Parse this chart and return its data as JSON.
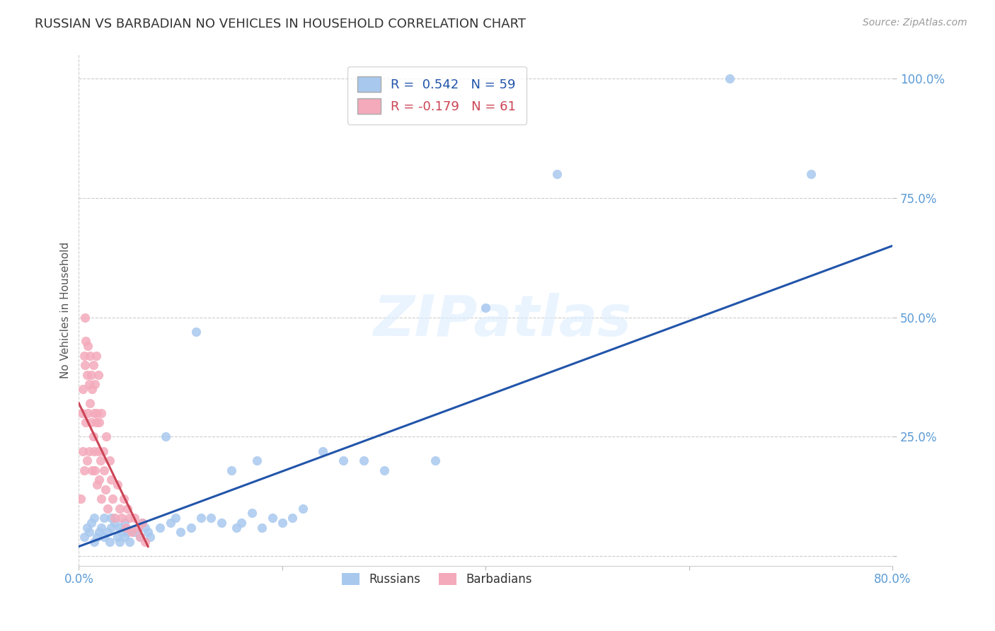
{
  "title": "RUSSIAN VS BARBADIAN NO VEHICLES IN HOUSEHOLD CORRELATION CHART",
  "source": "Source: ZipAtlas.com",
  "ylabel": "No Vehicles in Household",
  "xlim": [
    0.0,
    0.8
  ],
  "ylim": [
    -0.02,
    1.05
  ],
  "xticks": [
    0.0,
    0.2,
    0.4,
    0.6,
    0.8
  ],
  "xtick_labels": [
    "0.0%",
    "",
    "",
    "",
    "80.0%"
  ],
  "yticks": [
    0.0,
    0.25,
    0.5,
    0.75,
    1.0
  ],
  "ytick_labels": [
    "",
    "25.0%",
    "50.0%",
    "75.0%",
    "100.0%"
  ],
  "grid_color": "#cccccc",
  "background_color": "#ffffff",
  "russian_color": "#A8C8EE",
  "barbadian_color": "#F4AABB",
  "russian_line_color": "#2255AA",
  "barbadian_line_color": "#CC4455",
  "R_russian": 0.542,
  "N_russian": 59,
  "R_barbadian": -0.179,
  "N_barbadian": 61,
  "watermark": "ZIPatlas",
  "russian_line_x": [
    0.0,
    0.8
  ],
  "russian_line_y": [
    0.02,
    0.65
  ],
  "barbadian_line_x": [
    0.0,
    0.068
  ],
  "barbadian_line_y": [
    0.32,
    0.02
  ],
  "russians_x": [
    0.005,
    0.008,
    0.01,
    0.012,
    0.015,
    0.015,
    0.018,
    0.02,
    0.022,
    0.025,
    0.025,
    0.028,
    0.03,
    0.032,
    0.032,
    0.035,
    0.038,
    0.04,
    0.04,
    0.042,
    0.045,
    0.045,
    0.048,
    0.05,
    0.055,
    0.06,
    0.062,
    0.065,
    0.068,
    0.07,
    0.08,
    0.085,
    0.09,
    0.095,
    0.1,
    0.11,
    0.115,
    0.12,
    0.13,
    0.14,
    0.15,
    0.155,
    0.16,
    0.17,
    0.175,
    0.18,
    0.19,
    0.2,
    0.21,
    0.22,
    0.24,
    0.26,
    0.28,
    0.3,
    0.35,
    0.4,
    0.47,
    0.64,
    0.72
  ],
  "russians_y": [
    0.04,
    0.06,
    0.05,
    0.07,
    0.03,
    0.08,
    0.04,
    0.05,
    0.06,
    0.04,
    0.08,
    0.05,
    0.03,
    0.06,
    0.08,
    0.07,
    0.04,
    0.03,
    0.06,
    0.05,
    0.04,
    0.07,
    0.05,
    0.03,
    0.05,
    0.04,
    0.07,
    0.06,
    0.05,
    0.04,
    0.06,
    0.25,
    0.07,
    0.08,
    0.05,
    0.06,
    0.47,
    0.08,
    0.08,
    0.07,
    0.18,
    0.06,
    0.07,
    0.09,
    0.2,
    0.06,
    0.08,
    0.07,
    0.08,
    0.1,
    0.22,
    0.2,
    0.2,
    0.18,
    0.2,
    0.52,
    0.8,
    1.0,
    0.8
  ],
  "barbadians_x": [
    0.002,
    0.003,
    0.004,
    0.004,
    0.005,
    0.005,
    0.006,
    0.006,
    0.007,
    0.007,
    0.008,
    0.008,
    0.009,
    0.009,
    0.01,
    0.01,
    0.011,
    0.011,
    0.012,
    0.012,
    0.013,
    0.013,
    0.014,
    0.014,
    0.015,
    0.015,
    0.016,
    0.016,
    0.017,
    0.017,
    0.018,
    0.018,
    0.019,
    0.019,
    0.02,
    0.02,
    0.021,
    0.022,
    0.022,
    0.024,
    0.025,
    0.026,
    0.027,
    0.028,
    0.03,
    0.032,
    0.033,
    0.035,
    0.038,
    0.04,
    0.042,
    0.044,
    0.046,
    0.048,
    0.05,
    0.052,
    0.055,
    0.058,
    0.06,
    0.062,
    0.065
  ],
  "barbadians_y": [
    0.12,
    0.3,
    0.22,
    0.35,
    0.42,
    0.18,
    0.4,
    0.5,
    0.28,
    0.45,
    0.38,
    0.2,
    0.44,
    0.3,
    0.36,
    0.22,
    0.32,
    0.42,
    0.28,
    0.38,
    0.18,
    0.35,
    0.25,
    0.4,
    0.3,
    0.22,
    0.36,
    0.18,
    0.28,
    0.42,
    0.15,
    0.3,
    0.22,
    0.38,
    0.16,
    0.28,
    0.2,
    0.3,
    0.12,
    0.22,
    0.18,
    0.14,
    0.25,
    0.1,
    0.2,
    0.16,
    0.12,
    0.08,
    0.15,
    0.1,
    0.08,
    0.12,
    0.06,
    0.1,
    0.08,
    0.05,
    0.08,
    0.06,
    0.04,
    0.07,
    0.03
  ]
}
